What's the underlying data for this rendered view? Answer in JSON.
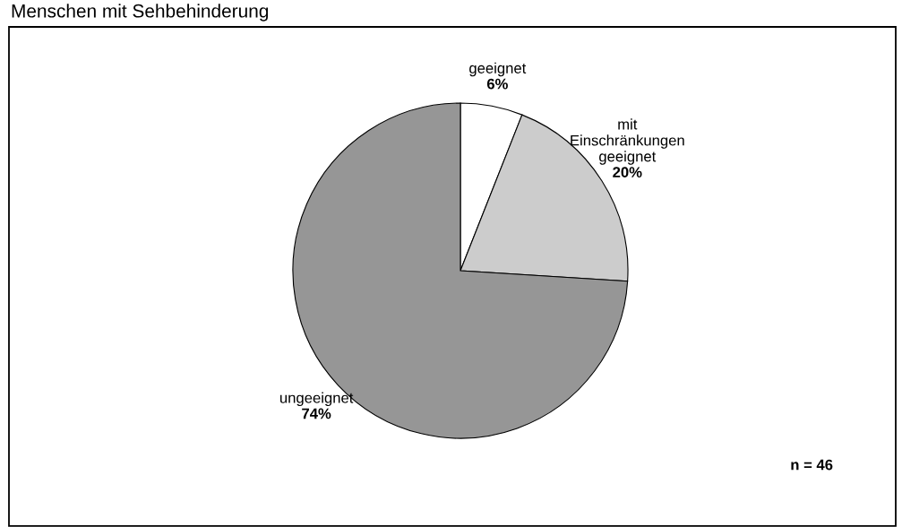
{
  "chart_data": {
    "type": "pie",
    "title": "Menschen mit Sehbehinderung",
    "categories": [
      "geeignet",
      "mit\nEinschränkungen\ngeeignet",
      "ungeeignet"
    ],
    "values": [
      6,
      20,
      74
    ],
    "colors": [
      "#ffffff",
      "#cccccc",
      "#969696"
    ],
    "value_labels": [
      "6%",
      "20%",
      "74%"
    ],
    "annotations": [
      "n = 46"
    ]
  }
}
